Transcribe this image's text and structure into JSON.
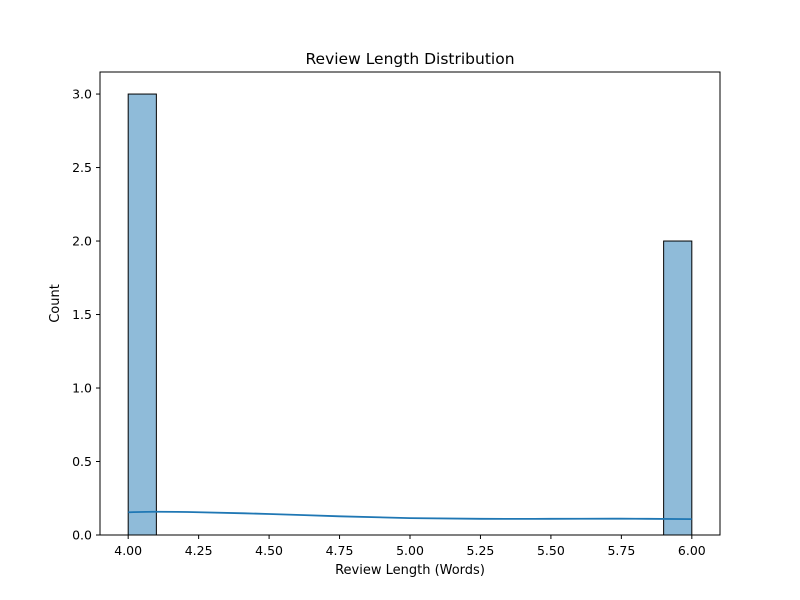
{
  "chart_data": {
    "type": "bar",
    "title": "Review Length Distribution",
    "xlabel": "Review Length (Words)",
    "ylabel": "Count",
    "xlim": [
      3.9,
      6.1
    ],
    "ylim": [
      0,
      3.15
    ],
    "x_ticks": [
      4.0,
      4.25,
      4.5,
      4.75,
      5.0,
      5.25,
      5.5,
      5.75,
      6.0
    ],
    "x_tick_labels": [
      "4.00",
      "4.25",
      "4.50",
      "4.75",
      "5.00",
      "5.25",
      "5.50",
      "5.75",
      "6.00"
    ],
    "y_ticks": [
      0,
      0.5,
      1.0,
      1.5,
      2.0,
      2.5,
      3.0
    ],
    "y_tick_labels": [
      "0.0",
      "0.5",
      "1.0",
      "1.5",
      "2.0",
      "2.5",
      "3.0"
    ],
    "bins": [
      {
        "x0": 4.0,
        "x1": 4.1,
        "count": 3
      },
      {
        "x0": 4.1,
        "x1": 4.2,
        "count": 0
      },
      {
        "x0": 4.2,
        "x1": 4.3,
        "count": 0
      },
      {
        "x0": 4.3,
        "x1": 4.4,
        "count": 0
      },
      {
        "x0": 4.4,
        "x1": 4.5,
        "count": 0
      },
      {
        "x0": 4.5,
        "x1": 4.6,
        "count": 0
      },
      {
        "x0": 4.6,
        "x1": 4.7,
        "count": 0
      },
      {
        "x0": 4.7,
        "x1": 4.8,
        "count": 0
      },
      {
        "x0": 4.8,
        "x1": 4.9,
        "count": 0
      },
      {
        "x0": 4.9,
        "x1": 5.0,
        "count": 0
      },
      {
        "x0": 5.0,
        "x1": 5.1,
        "count": 0
      },
      {
        "x0": 5.1,
        "x1": 5.2,
        "count": 0
      },
      {
        "x0": 5.2,
        "x1": 5.3,
        "count": 0
      },
      {
        "x0": 5.3,
        "x1": 5.4,
        "count": 0
      },
      {
        "x0": 5.4,
        "x1": 5.5,
        "count": 0
      },
      {
        "x0": 5.5,
        "x1": 5.6,
        "count": 0
      },
      {
        "x0": 5.6,
        "x1": 5.7,
        "count": 0
      },
      {
        "x0": 5.7,
        "x1": 5.8,
        "count": 0
      },
      {
        "x0": 5.8,
        "x1": 5.9,
        "count": 0
      },
      {
        "x0": 5.9,
        "x1": 6.0,
        "count": 2
      }
    ],
    "kde": {
      "x": [
        4.0,
        4.1,
        4.25,
        4.5,
        4.75,
        5.0,
        5.25,
        5.5,
        5.75,
        6.0
      ],
      "y": [
        0.155,
        0.158,
        0.155,
        0.143,
        0.127,
        0.115,
        0.11,
        0.11,
        0.111,
        0.108
      ]
    },
    "grid": false,
    "bar_color": "#1f77b4",
    "bar_fill_opacity": 0.5,
    "bar_edge_color": "#000000",
    "kde_color": "#1f77b4"
  }
}
